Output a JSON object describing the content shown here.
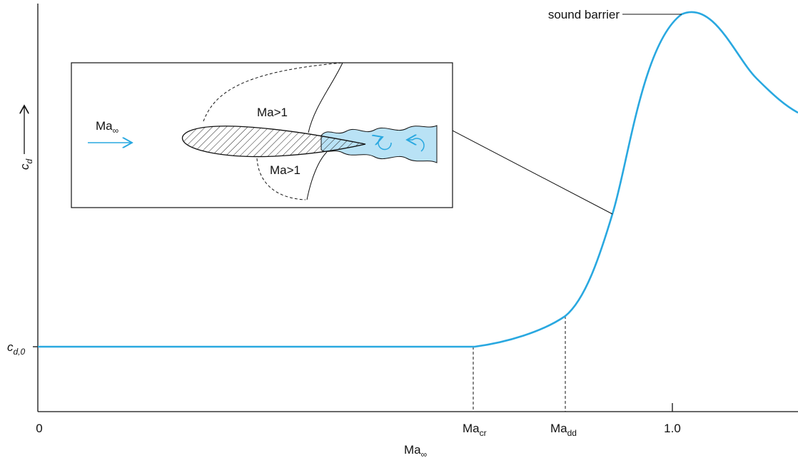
{
  "axes": {
    "y_label": {
      "base": "c",
      "sub": "d"
    },
    "y_tick": {
      "base": "c",
      "sub": "d,0"
    },
    "x_label": {
      "base": "Ma",
      "sub": "∞"
    },
    "x_ticks": [
      {
        "label": "0"
      },
      {
        "base": "Ma",
        "sub": "cr"
      },
      {
        "base": "Ma",
        "sub": "dd"
      },
      {
        "label": "1.0"
      }
    ]
  },
  "annotation": "sound barrier",
  "inset": {
    "flow_label": {
      "base": "Ma",
      "sub": "∞"
    },
    "region_labels": [
      "Ma>1",
      "Ma>1"
    ]
  }
}
